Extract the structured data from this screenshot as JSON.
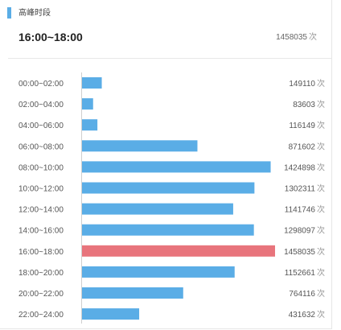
{
  "header": {
    "section_title": "高峰时段",
    "peak_range": "16:00~18:00",
    "peak_count": "1458035",
    "unit": "次"
  },
  "colors": {
    "accent": "#5aade6",
    "bar": "#5aade6",
    "highlight": "#e8747c",
    "text": "#333333"
  },
  "chart_data": {
    "type": "bar",
    "orientation": "horizontal",
    "title": "",
    "xlabel": "",
    "ylabel": "",
    "xlim": [
      0,
      1458035
    ],
    "grid": false,
    "legend": "none",
    "unit": "次",
    "highlight_category": "16:00~18:00",
    "categories": [
      "00:00~02:00",
      "02:00~04:00",
      "04:00~06:00",
      "06:00~08:00",
      "08:00~10:00",
      "10:00~12:00",
      "12:00~14:00",
      "14:00~16:00",
      "16:00~18:00",
      "18:00~20:00",
      "20:00~22:00",
      "22:00~24:00"
    ],
    "values": [
      149110,
      83603,
      116149,
      871602,
      1424898,
      1302311,
      1141746,
      1298097,
      1458035,
      1152661,
      764116,
      431632
    ]
  }
}
